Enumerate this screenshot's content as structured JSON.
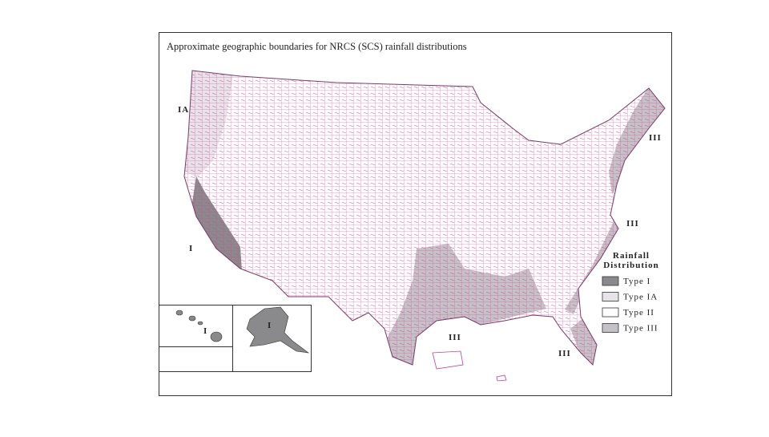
{
  "title": "Approximate geographic boundaries for NRCS (SCS) rainfall distributions",
  "region_labels": [
    "IA",
    "I",
    "III",
    "III",
    "III",
    "III",
    "I",
    "I"
  ],
  "legend": {
    "title_lines": [
      "Rainfall",
      "Distribution"
    ],
    "items": [
      {
        "label": "Type I",
        "color": "#8a8a8c"
      },
      {
        "label": "Type IA",
        "color": "#e6e4e8"
      },
      {
        "label": "Type II",
        "color": "#ffffff"
      },
      {
        "label": "Type III",
        "color": "#c4c2c6"
      }
    ]
  }
}
